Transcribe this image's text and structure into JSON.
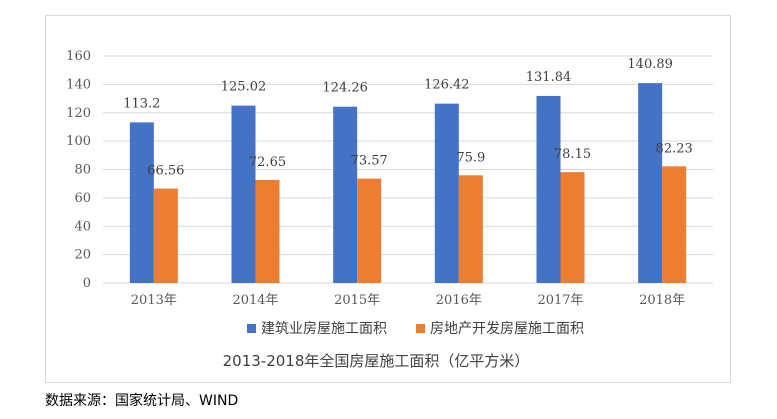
{
  "chart_data": {
    "type": "bar",
    "title": "2013-2018年全国房屋施工面积（亿平方米）",
    "categories": [
      "2013年",
      "2014年",
      "2015年",
      "2016年",
      "2017年",
      "2018年"
    ],
    "series": [
      {
        "name": "建筑业房屋施工面积",
        "values": [
          113.2,
          125.02,
          124.26,
          126.42,
          131.84,
          140.89
        ],
        "color": "#4472C4"
      },
      {
        "name": "房地产开发房屋施工面积",
        "values": [
          66.56,
          72.65,
          73.57,
          75.9,
          78.15,
          82.23
        ],
        "color": "#ED7D31"
      }
    ],
    "data_labels": [
      [
        "113.2",
        "125.02",
        "124.26",
        "126.42",
        "131.84",
        "140.89"
      ],
      [
        "66.56",
        "72.65",
        "73.57",
        "75.9",
        "78.15",
        "82.23"
      ]
    ],
    "yticks": [
      "0",
      "20",
      "40",
      "60",
      "80",
      "100",
      "120",
      "140",
      "160"
    ],
    "ylim": [
      0,
      160
    ],
    "grid": true,
    "legend_position": "bottom"
  },
  "source_note": "数据来源：国家统计局、WIND"
}
